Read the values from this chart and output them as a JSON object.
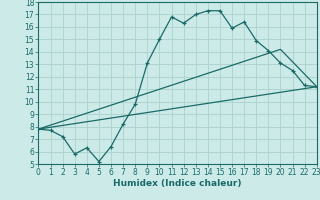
{
  "title": "",
  "xlabel": "Humidex (Indice chaleur)",
  "xlim": [
    0,
    23
  ],
  "ylim": [
    5,
    18
  ],
  "xticks": [
    0,
    1,
    2,
    3,
    4,
    5,
    6,
    7,
    8,
    9,
    10,
    11,
    12,
    13,
    14,
    15,
    16,
    17,
    18,
    19,
    20,
    21,
    22,
    23
  ],
  "yticks": [
    5,
    6,
    7,
    8,
    9,
    10,
    11,
    12,
    13,
    14,
    15,
    16,
    17,
    18
  ],
  "bg_color": "#cceae8",
  "plot_bg_color": "#cceae8",
  "grid_color": "#b0d4d0",
  "line_color": "#1a6b68",
  "line1_x": [
    0,
    1,
    2,
    3,
    4,
    5,
    6,
    7,
    8,
    9,
    10,
    11,
    12,
    13,
    14,
    15,
    16,
    17,
    18,
    19,
    20,
    21,
    22,
    23
  ],
  "line1_y": [
    7.8,
    7.7,
    7.2,
    5.8,
    6.3,
    5.2,
    6.4,
    8.2,
    9.8,
    13.1,
    15.0,
    16.8,
    16.3,
    17.0,
    17.3,
    17.3,
    15.9,
    16.4,
    14.9,
    14.1,
    13.1,
    12.5,
    11.3,
    11.2
  ],
  "line2_x": [
    0,
    23
  ],
  "line2_y": [
    7.8,
    11.2
  ],
  "line3_x": [
    0,
    20,
    23
  ],
  "line3_y": [
    7.8,
    14.2,
    11.2
  ],
  "tick_fontsize": 5.5,
  "xlabel_fontsize": 6.5
}
